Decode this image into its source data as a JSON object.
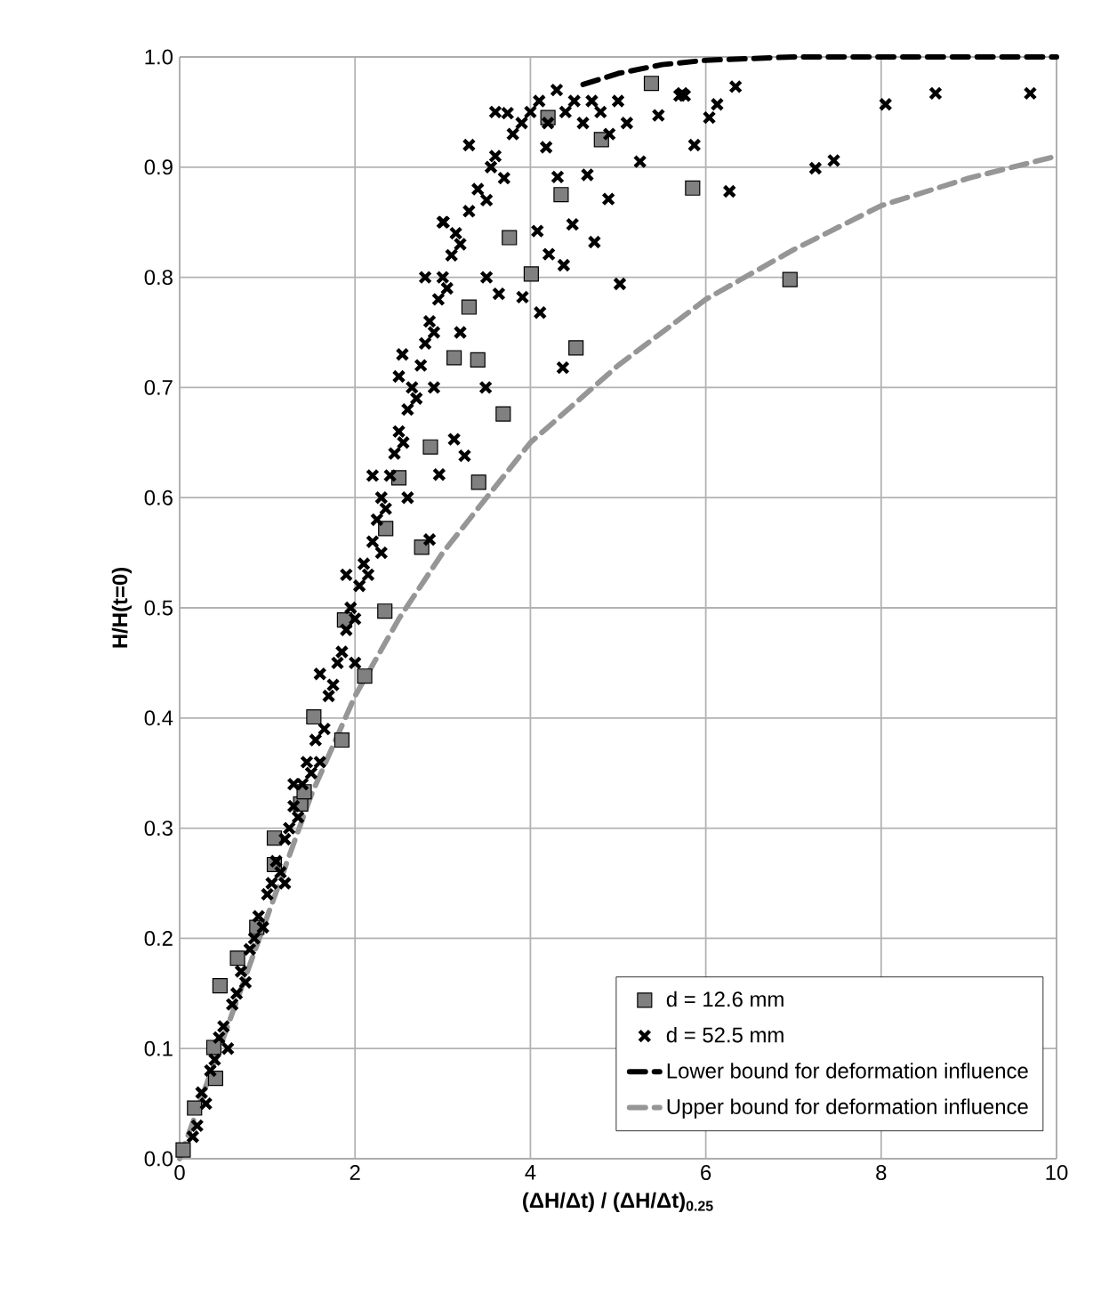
{
  "chart_data": {
    "type": "scatter",
    "xlabel": "(ΔH/Δt) / (ΔH/Δt)$_{0.25}$",
    "ylabel": "H/H(t=0)",
    "xlim": [
      0,
      10
    ],
    "xticks": [
      0,
      2,
      4,
      6,
      8,
      10
    ],
    "ylim": [
      0,
      1
    ],
    "yticks": [
      {
        "value": 0,
        "label": "0.0"
      },
      {
        "value": 0.1,
        "label": "0.1"
      },
      {
        "value": 0.2,
        "label": "0.2"
      },
      {
        "value": 0.3,
        "label": "0.3"
      },
      {
        "value": 0.4,
        "label": "0.4"
      },
      {
        "value": 0.5,
        "label": "0.5"
      },
      {
        "value": 0.6,
        "label": "0.6"
      },
      {
        "value": 0.7,
        "label": "0.7"
      },
      {
        "value": 0.8,
        "label": "0.8"
      },
      {
        "value": 0.9,
        "label": "0.9"
      },
      {
        "value": 1.0,
        "label": "1.0"
      }
    ],
    "grid": true,
    "legend": "bottom right",
    "series": [
      {
        "name": "d = 12.6 mm",
        "marker": "square",
        "color": "#808080",
        "x": [
          0.04,
          0.17,
          0.41,
          0.39,
          0.46,
          0.66,
          0.88,
          1.08,
          1.08,
          1.38,
          1.42,
          1.53,
          1.85,
          2.11,
          2.34,
          1.88,
          2.76,
          3.41,
          3.69,
          4.52,
          2.86,
          2.5,
          3.13,
          3.4,
          3.3,
          4.01,
          3.76,
          4.35,
          4.81,
          4.2,
          5.38,
          2.35,
          5.85,
          6.96
        ],
        "values": [
          0.008,
          0.046,
          0.073,
          0.101,
          0.157,
          0.182,
          0.21,
          0.267,
          0.291,
          0.322,
          0.333,
          0.401,
          0.38,
          0.438,
          0.497,
          0.489,
          0.555,
          0.614,
          0.676,
          0.736,
          0.646,
          0.618,
          0.727,
          0.725,
          0.773,
          0.803,
          0.836,
          0.875,
          0.925,
          0.945,
          0.976,
          0.572,
          0.881,
          0.798
        ]
      },
      {
        "name": "d = 52.5 mm",
        "marker": "cross",
        "color": "#000000",
        "x": [
          0.15,
          0.2,
          0.25,
          0.3,
          0.35,
          0.4,
          0.45,
          0.5,
          0.55,
          0.6,
          0.65,
          0.7,
          0.75,
          0.8,
          0.85,
          0.9,
          0.95,
          1.0,
          1.05,
          1.1,
          1.15,
          1.2,
          1.25,
          1.3,
          1.35,
          1.4,
          1.45,
          1.5,
          1.55,
          1.6,
          1.65,
          1.7,
          1.75,
          1.8,
          1.85,
          1.9,
          1.95,
          2.0,
          2.05,
          2.1,
          2.15,
          2.2,
          2.25,
          2.3,
          2.35,
          2.4,
          2.45,
          2.5,
          2.55,
          2.6,
          2.65,
          2.7,
          2.75,
          2.8,
          2.85,
          2.9,
          2.95,
          3.0,
          3.05,
          3.1,
          3.15,
          3.2,
          3.3,
          3.4,
          3.5,
          3.55,
          3.6,
          3.7,
          3.8,
          3.9,
          4.0,
          4.1,
          4.2,
          4.3,
          4.4,
          4.5,
          4.6,
          4.7,
          4.8,
          4.9,
          5.0,
          5.1,
          1.2,
          1.6,
          2.0,
          1.3,
          2.3,
          2.6,
          2.9,
          3.2,
          3.5,
          1.9,
          2.2,
          2.5,
          2.8,
          3.0,
          3.3,
          3.6,
          6.34,
          6.13,
          6.04,
          5.87,
          5.46,
          5.25,
          4.89,
          6.27,
          4.73,
          5.02,
          7.25,
          7.46,
          8.05,
          8.62,
          9.7,
          5.73,
          5.7,
          5.76,
          4.38,
          4.21,
          4.11,
          3.91,
          4.37,
          3.49,
          3.13,
          3.25,
          2.96,
          2.85,
          2.54,
          3.01,
          3.74,
          4.65,
          4.18,
          4.31,
          4.48,
          4.08,
          3.64
        ],
        "values": [
          0.02,
          0.03,
          0.06,
          0.05,
          0.08,
          0.09,
          0.11,
          0.12,
          0.1,
          0.14,
          0.15,
          0.17,
          0.16,
          0.19,
          0.2,
          0.22,
          0.21,
          0.24,
          0.25,
          0.27,
          0.26,
          0.29,
          0.3,
          0.32,
          0.31,
          0.34,
          0.36,
          0.35,
          0.38,
          0.44,
          0.39,
          0.42,
          0.43,
          0.45,
          0.46,
          0.48,
          0.5,
          0.49,
          0.52,
          0.54,
          0.53,
          0.56,
          0.58,
          0.6,
          0.59,
          0.62,
          0.64,
          0.66,
          0.65,
          0.68,
          0.7,
          0.69,
          0.72,
          0.74,
          0.76,
          0.75,
          0.78,
          0.8,
          0.79,
          0.82,
          0.84,
          0.83,
          0.86,
          0.88,
          0.87,
          0.9,
          0.91,
          0.89,
          0.93,
          0.94,
          0.95,
          0.96,
          0.94,
          0.97,
          0.95,
          0.96,
          0.94,
          0.96,
          0.95,
          0.93,
          0.96,
          0.94,
          0.25,
          0.36,
          0.45,
          0.34,
          0.55,
          0.6,
          0.7,
          0.75,
          0.8,
          0.53,
          0.62,
          0.71,
          0.8,
          0.85,
          0.92,
          0.95,
          0.973,
          0.957,
          0.945,
          0.92,
          0.947,
          0.905,
          0.871,
          0.878,
          0.832,
          0.794,
          0.899,
          0.906,
          0.957,
          0.967,
          0.967,
          0.967,
          0.965,
          0.965,
          0.811,
          0.821,
          0.768,
          0.782,
          0.718,
          0.7,
          0.653,
          0.638,
          0.621,
          0.562,
          0.73,
          0.85,
          0.949,
          0.893,
          0.918,
          0.891,
          0.848,
          0.842,
          0.785
        ]
      },
      {
        "name": "Lower bound for deformation influence",
        "type": "line",
        "line_style": "dashed",
        "color": "#000000",
        "x": [
          4.6,
          5.0,
          5.5,
          6.0,
          7.0,
          8.0,
          10.0
        ],
        "values": [
          0.975,
          0.985,
          0.993,
          0.997,
          1.0,
          1.0,
          1.0
        ]
      },
      {
        "name": "Upper bound for deformation influence",
        "type": "line",
        "line_style": "dashed",
        "color": "#969696",
        "x": [
          0,
          0.5,
          1,
          1.5,
          2,
          2.5,
          3,
          3.5,
          4,
          5,
          6,
          7,
          8,
          9,
          10
        ],
        "values": [
          0,
          0.11,
          0.22,
          0.33,
          0.42,
          0.49,
          0.55,
          0.6,
          0.65,
          0.72,
          0.78,
          0.825,
          0.865,
          0.89,
          0.91
        ]
      }
    ]
  }
}
